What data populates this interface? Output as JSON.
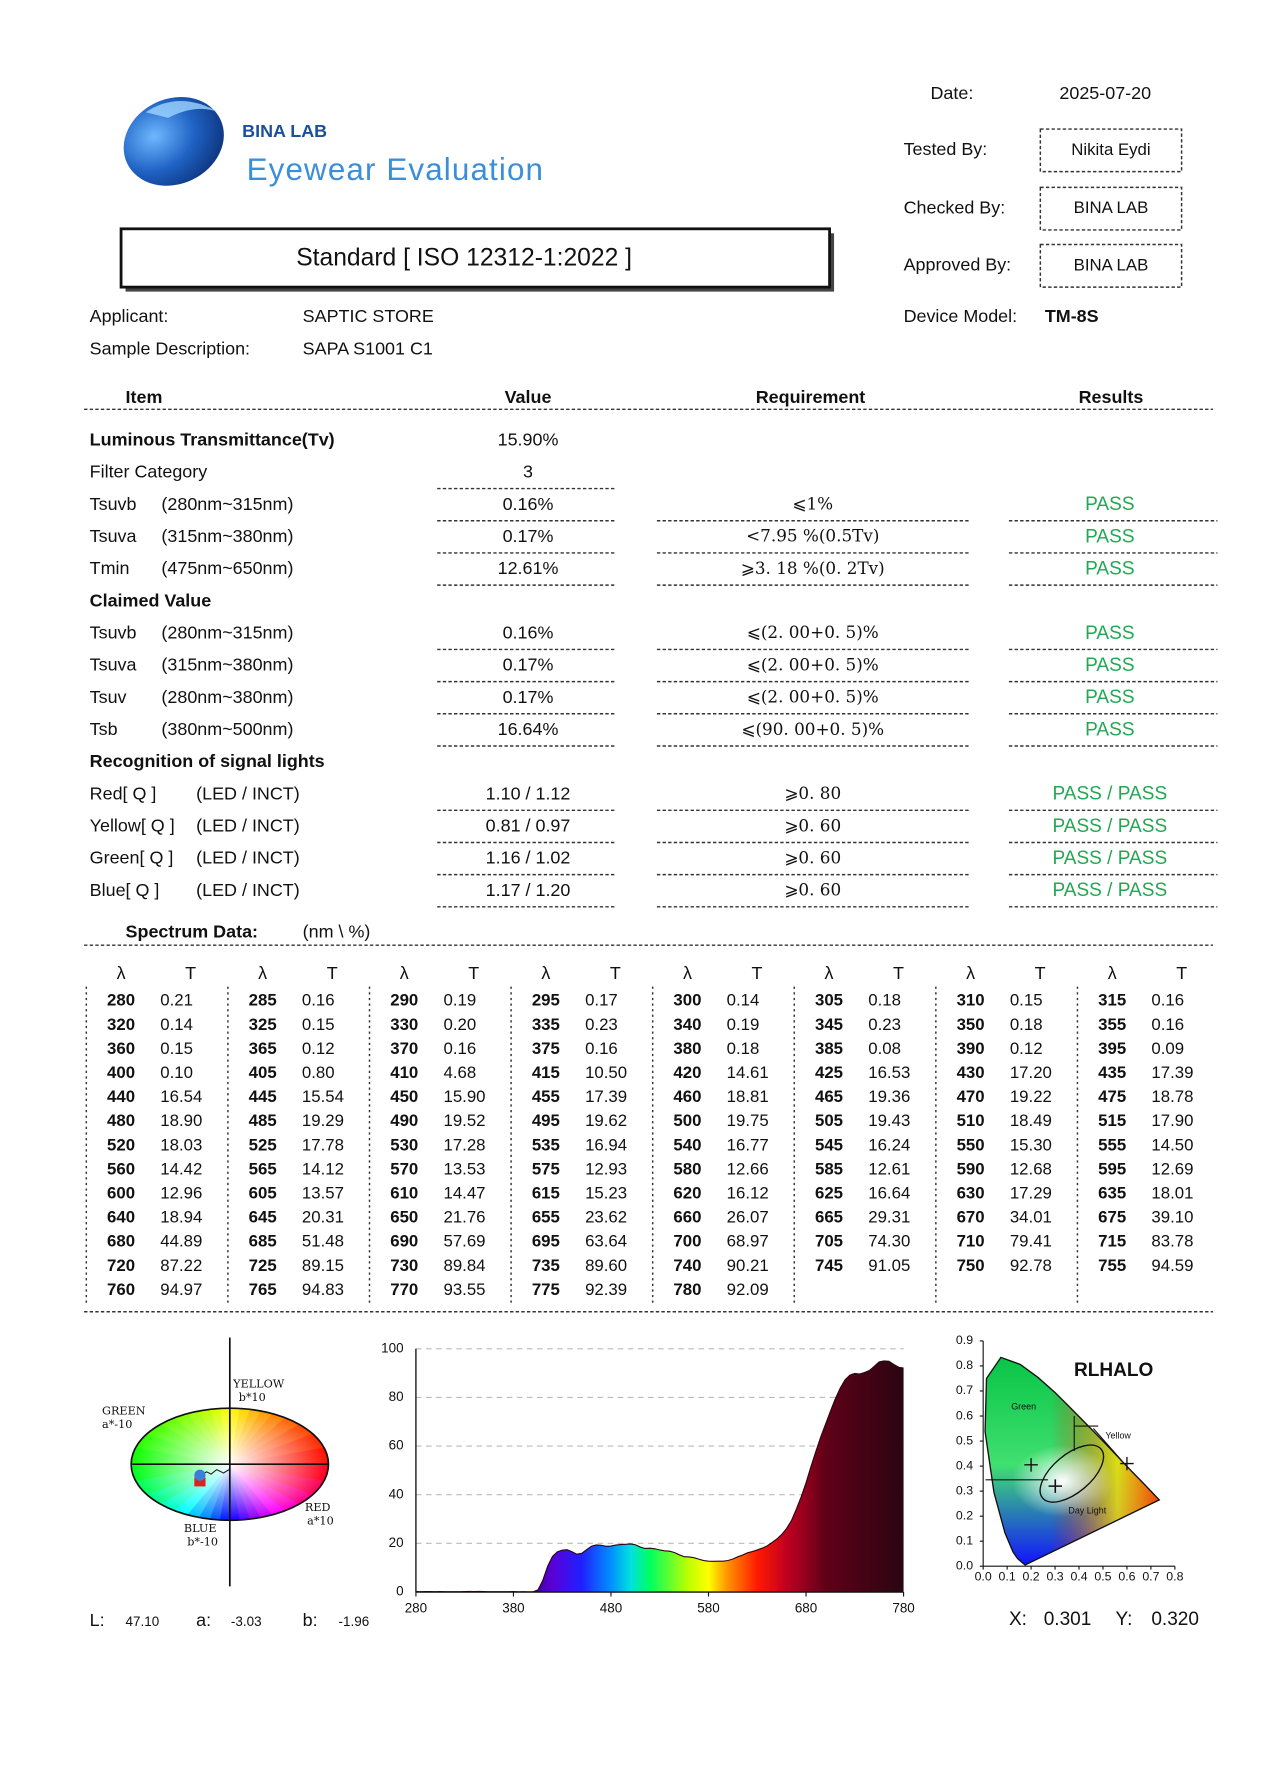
{
  "header": {
    "brand": "BINA LAB",
    "tagline": "Eyewear Evaluation",
    "standard": "Standard [ ISO 12312-1:2022 ]"
  },
  "info": {
    "date_label": "Date:",
    "date": "2025-07-20",
    "tested_label": "Tested By:",
    "tested": "Nikita Eydi",
    "checked_label": "Checked By:",
    "checked": "BINA LAB",
    "approved_label": "Approved By:",
    "approved": "BINA LAB",
    "device_label": "Device Model:",
    "device": "TM-8S",
    "applicant_label": "Applicant:",
    "applicant": "SAPTIC STORE",
    "sample_label": "Sample Description:",
    "sample": "SAPA S1001 C1"
  },
  "table": {
    "headers": [
      "Item",
      "Value",
      "Requirement",
      "Results"
    ],
    "sections": [
      {
        "heading": "Luminous Transmittance(Tv)",
        "value": "15.90%",
        "rows": [
          {
            "label": "Filter Category",
            "value": "3"
          },
          {
            "label": "Tsuvb",
            "range": "(280nm~315nm)",
            "value": "0.16%",
            "requirement": "⩽1%",
            "result": "PASS"
          },
          {
            "label": "Tsuva",
            "range": "(315nm~380nm)",
            "value": "0.17%",
            "requirement": "<7.95 %(0.5Tv)",
            "result": "PASS"
          },
          {
            "label": "Tmin",
            "range": "(475nm~650nm)",
            "value": "12.61%",
            "requirement": "⩾3. 18 %(0. 2Tv)",
            "result": "PASS"
          }
        ]
      },
      {
        "heading": "Claimed Value",
        "rows": [
          {
            "label": "Tsuvb",
            "range": "(280nm~315nm)",
            "value": "0.16%",
            "requirement": "⩽(2. 00+0. 5)%",
            "result": "PASS"
          },
          {
            "label": "Tsuva",
            "range": "(315nm~380nm)",
            "value": "0.17%",
            "requirement": "⩽(2. 00+0. 5)%",
            "result": "PASS"
          },
          {
            "label": "Tsuv",
            "range": "(280nm~380nm)",
            "value": "0.17%",
            "requirement": "⩽(2. 00+0. 5)%",
            "result": "PASS"
          },
          {
            "label": "Tsb",
            "range": "(380nm~500nm)",
            "value": "16.64%",
            "requirement": "⩽(90. 00+0. 5)%",
            "result": "PASS"
          }
        ]
      },
      {
        "heading": "Recognition of signal lights",
        "rows": [
          {
            "label": "Red[ Q ]",
            "range": "(LED / INCT)",
            "value": "1.10 / 1.12",
            "requirement": "⩾0. 80",
            "result": "PASS / PASS"
          },
          {
            "label": "Yellow[ Q ]",
            "range": "(LED / INCT)",
            "value": "0.81 / 0.97",
            "requirement": "⩾0. 60",
            "result": "PASS / PASS"
          },
          {
            "label": "Green[ Q ]",
            "range": "(LED / INCT)",
            "value": "1.16 / 1.02",
            "requirement": "⩾0. 60",
            "result": "PASS / PASS"
          },
          {
            "label": "Blue[ Q ]",
            "range": "(LED / INCT)",
            "value": "1.17 / 1.20",
            "requirement": "⩾0. 60",
            "result": "PASS / PASS"
          }
        ]
      }
    ]
  },
  "spectrum": {
    "title": "Spectrum Data:",
    "unit": "(nm \\ %)",
    "col_headers": [
      "λ",
      "T"
    ],
    "wavelengths": [
      280,
      285,
      290,
      295,
      300,
      305,
      310,
      315,
      320,
      325,
      330,
      335,
      340,
      345,
      350,
      355,
      360,
      365,
      370,
      375,
      380,
      385,
      390,
      395,
      400,
      405,
      410,
      415,
      420,
      425,
      430,
      435,
      440,
      445,
      450,
      455,
      460,
      465,
      470,
      475,
      480,
      485,
      490,
      495,
      500,
      505,
      510,
      515,
      520,
      525,
      530,
      535,
      540,
      545,
      550,
      555,
      560,
      565,
      570,
      575,
      580,
      585,
      590,
      595,
      600,
      605,
      610,
      615,
      620,
      625,
      630,
      635,
      640,
      645,
      650,
      655,
      660,
      665,
      670,
      675,
      680,
      685,
      690,
      695,
      700,
      705,
      710,
      715,
      720,
      725,
      730,
      735,
      740,
      745,
      750,
      755,
      760,
      765,
      770,
      775,
      780
    ],
    "transmittance": [
      "0.21",
      "0.16",
      "0.19",
      "0.17",
      "0.14",
      "0.18",
      "0.15",
      "0.16",
      "0.14",
      "0.15",
      "0.20",
      "0.23",
      "0.19",
      "0.23",
      "0.18",
      "0.16",
      "0.15",
      "0.12",
      "0.16",
      "0.16",
      "0.18",
      "0.08",
      "0.12",
      "0.09",
      "0.10",
      "0.80",
      "4.68",
      "10.50",
      "14.61",
      "16.53",
      "17.20",
      "17.39",
      "16.54",
      "15.54",
      "15.90",
      "17.39",
      "18.81",
      "19.36",
      "19.22",
      "18.78",
      "18.90",
      "19.29",
      "19.52",
      "19.62",
      "19.75",
      "19.43",
      "18.49",
      "17.90",
      "18.03",
      "17.78",
      "17.28",
      "16.94",
      "16.77",
      "16.24",
      "15.30",
      "14.50",
      "14.42",
      "14.12",
      "13.53",
      "12.93",
      "12.66",
      "12.61",
      "12.68",
      "12.69",
      "12.96",
      "13.57",
      "14.47",
      "15.23",
      "16.12",
      "16.64",
      "17.29",
      "18.01",
      "18.94",
      "20.31",
      "21.76",
      "23.62",
      "26.07",
      "29.31",
      "34.01",
      "39.10",
      "44.89",
      "51.48",
      "57.69",
      "63.64",
      "68.97",
      "74.30",
      "79.41",
      "83.78",
      "87.22",
      "89.15",
      "89.84",
      "89.60",
      "90.21",
      "91.05",
      "92.78",
      "94.59",
      "94.97",
      "94.83",
      "93.55",
      "92.39",
      "92.09"
    ]
  },
  "spectrum_chart": {
    "xlim": [
      280,
      780
    ],
    "ylim": [
      0,
      100
    ],
    "xticks": [
      280,
      380,
      480,
      580,
      680,
      780
    ],
    "yticks": [
      0,
      20,
      40,
      60,
      80,
      100
    ],
    "grid": true
  },
  "color_space": {
    "axis_labels": {
      "yellow": "YELLOW",
      "yellow_scale": "b*10",
      "green": "GREEN",
      "green_scale": "a*-10",
      "red": "RED",
      "red_scale": "a*10",
      "blue": "BLUE",
      "blue_scale": "b*-10"
    },
    "L_label": "L:",
    "L": {
      "value": 47.1,
      "label": "47.10"
    },
    "a_label": "a:",
    "a": -3.03,
    "b_label": "b:",
    "b": -1.96
  },
  "cie": {
    "title": "RLHALO",
    "green_label": "Green",
    "yellow_label": "Yellow",
    "daylight_label": "Day Light",
    "xlim": [
      0,
      0.8
    ],
    "ylim": [
      0,
      0.9
    ],
    "xticks": [
      {
        "value": 0,
        "label": "0.0"
      },
      0.1,
      0.2,
      0.3,
      0.4,
      0.5,
      0.6,
      0.7,
      0.8
    ],
    "yticks": [
      {
        "value": 0,
        "label": "0.0"
      },
      0.1,
      0.2,
      0.3,
      0.4,
      0.5,
      0.6,
      0.7,
      0.8,
      0.9
    ],
    "x_label": "X:",
    "x": 0.301,
    "y_label": "Y:",
    "y": {
      "value": 0.32,
      "label": "0.320"
    }
  }
}
